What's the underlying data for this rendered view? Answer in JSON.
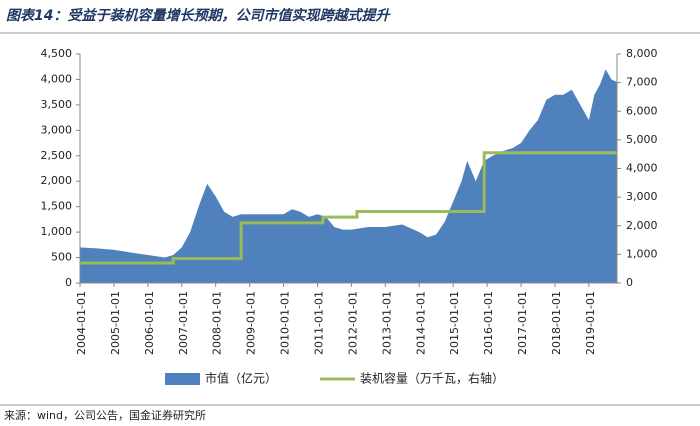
{
  "chart_data": {
    "type": "combo",
    "title": "图表14：受益于装机容量增长预期，公司市值实现跨越式提升",
    "source": "来源：wind，公司公告，国金证券研究所",
    "xlim": [
      "2004-01-01",
      "2019-10-31"
    ],
    "xticks": [
      "2004-01-01",
      "2005-01-01",
      "2006-01-01",
      "2007-01-01",
      "2008-01-01",
      "2009-01-01",
      "2010-01-01",
      "2011-01-01",
      "2012-01-01",
      "2013-01-01",
      "2014-01-01",
      "2015-01-01",
      "2016-01-01",
      "2017-01-01",
      "2018-01-01",
      "2019-01-01"
    ],
    "ylim": [
      0,
      4500
    ],
    "yticks": [
      0,
      {
        "value": 500,
        "label": "500"
      },
      {
        "value": 1000,
        "label": "1,000"
      },
      {
        "value": 1500,
        "label": "1,500"
      },
      {
        "value": 2000,
        "label": "2,000"
      },
      {
        "value": 2500,
        "label": "2,500"
      },
      {
        "value": 3000,
        "label": "3,000"
      },
      {
        "value": 3500,
        "label": "3,500"
      },
      {
        "value": 4000,
        "label": "4,000"
      },
      {
        "value": 4500,
        "label": "4,500"
      }
    ],
    "y2lim": [
      0,
      8000
    ],
    "y2ticks": [
      0,
      {
        "value": 1000,
        "label": "1,000"
      },
      {
        "value": 2000,
        "label": "2,000"
      },
      {
        "value": 3000,
        "label": "3,000"
      },
      {
        "value": 4000,
        "label": "4,000"
      },
      {
        "value": 5000,
        "label": "5,000"
      },
      {
        "value": 6000,
        "label": "6,000"
      },
      {
        "value": 7000,
        "label": "7,000"
      },
      {
        "value": 8000,
        "label": "8,000"
      }
    ],
    "series": [
      {
        "name": "市值（亿元）",
        "type": "area",
        "color": "#4f81bd",
        "axis": "y",
        "x": [
          "2004-01-01",
          "2004-07-01",
          "2005-01-01",
          "2005-07-01",
          "2006-01-01",
          "2006-07-01",
          "2006-10-01",
          "2007-01-01",
          "2007-04-01",
          "2007-07-01",
          "2007-10-01",
          "2008-01-01",
          "2008-04-01",
          "2008-07-01",
          "2008-10-01",
          "2009-01-01",
          "2009-07-01",
          "2010-01-01",
          "2010-04-01",
          "2010-07-01",
          "2010-10-01",
          "2011-01-01",
          "2011-04-01",
          "2011-07-01",
          "2011-10-01",
          "2012-01-01",
          "2012-07-01",
          "2013-01-01",
          "2013-07-01",
          "2014-01-01",
          "2014-04-01",
          "2014-07-01",
          "2014-10-01",
          "2015-01-01",
          "2015-04-01",
          "2015-06-01",
          "2015-09-01",
          "2015-12-01",
          "2016-03-01",
          "2016-07-01",
          "2016-10-01",
          "2017-01-01",
          "2017-04-01",
          "2017-07-01",
          "2017-10-01",
          "2018-01-01",
          "2018-04-01",
          "2018-07-01",
          "2018-10-01",
          "2019-01-01",
          "2019-03-01",
          "2019-05-01",
          "2019-07-01",
          "2019-09-01",
          "2019-10-31"
        ],
        "values": [
          700,
          680,
          650,
          600,
          550,
          500,
          550,
          700,
          1000,
          1500,
          1950,
          1700,
          1400,
          1300,
          1350,
          1350,
          1350,
          1350,
          1450,
          1400,
          1300,
          1350,
          1300,
          1100,
          1050,
          1050,
          1100,
          1100,
          1150,
          1000,
          900,
          950,
          1200,
          1600,
          2000,
          2400,
          2000,
          2400,
          2500,
          2600,
          2650,
          2750,
          3000,
          3200,
          3600,
          3700,
          3700,
          3800,
          3500,
          3200,
          3700,
          3900,
          4200,
          4000,
          3950
        ]
      },
      {
        "name": "装机容量（万千瓦，右轴）",
        "type": "step",
        "color": "#9bbb59",
        "axis": "y2",
        "x": [
          "2004-01-01",
          "2006-10-01",
          "2008-10-01",
          "2011-03-01",
          "2012-03-01",
          "2015-12-01",
          "2019-10-31"
        ],
        "values": [
          700,
          850,
          2100,
          2300,
          2500,
          4550,
          4550
        ]
      }
    ]
  }
}
